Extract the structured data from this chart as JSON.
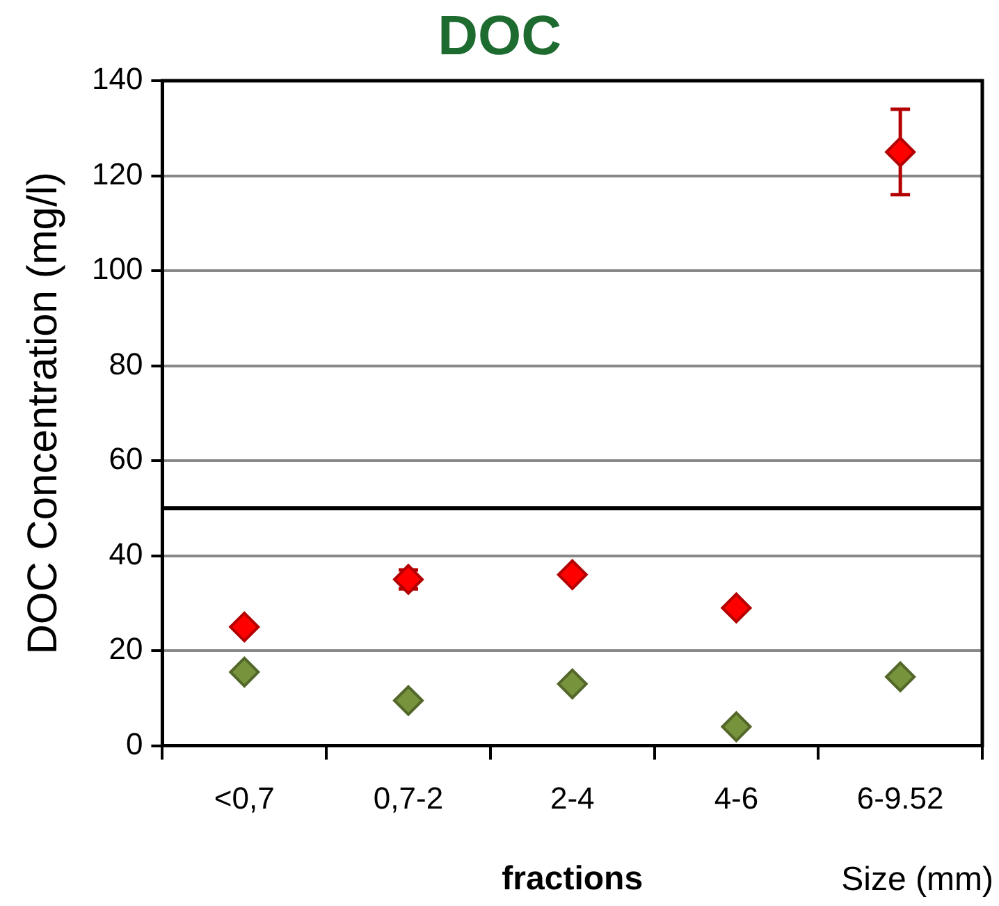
{
  "chart_data": {
    "type": "scatter",
    "title": "DOC",
    "xlabel": "fractions",
    "ylabel": "DOC Concentration (mg/l)",
    "annotations": [
      "Size (mm)"
    ],
    "categories": [
      "<0,7",
      "0,7-2",
      "2-4",
      "4-6",
      "6-9.52"
    ],
    "series": [
      {
        "color": "#ff0000",
        "values": [
          25,
          35,
          36,
          29,
          125
        ],
        "errors": [
          null,
          2,
          null,
          null,
          9
        ]
      },
      {
        "color": "#77933c",
        "values": [
          15.5,
          9.5,
          13,
          4,
          14.5
        ]
      }
    ],
    "ylim": [
      0,
      140
    ],
    "yticks": [
      0,
      20,
      40,
      60,
      80,
      100,
      120,
      140
    ],
    "grid": "y",
    "marker": "diamond",
    "ref_lines": [
      {
        "axis": "y",
        "value": 50,
        "color": "#000000"
      }
    ]
  }
}
